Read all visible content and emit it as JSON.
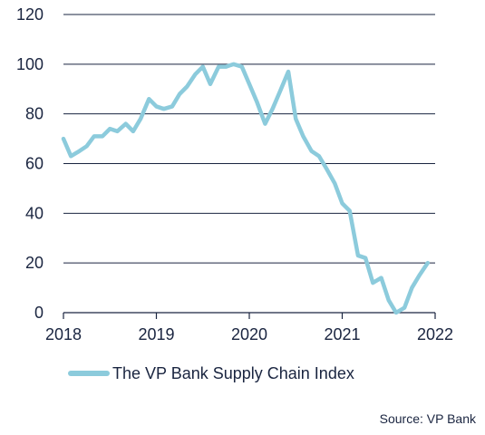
{
  "chart_data": {
    "type": "line",
    "title": "",
    "xlabel": "",
    "ylabel": "",
    "xlim": [
      2018,
      2022
    ],
    "ylim": [
      0,
      120
    ],
    "x_ticks": [
      "2018",
      "2019",
      "2020",
      "2021",
      "2022"
    ],
    "y_ticks": [
      "0",
      "20",
      "40",
      "60",
      "80",
      "100",
      "120"
    ],
    "grid": "horizontal",
    "legend": "bottom-left",
    "series": [
      {
        "name": "The VP Bank Supply Chain Index",
        "color": "#8ccbdc",
        "points": [
          [
            2018.0,
            70
          ],
          [
            2018.08,
            63
          ],
          [
            2018.17,
            65
          ],
          [
            2018.25,
            67
          ],
          [
            2018.33,
            71
          ],
          [
            2018.42,
            71
          ],
          [
            2018.5,
            74
          ],
          [
            2018.58,
            73
          ],
          [
            2018.67,
            76
          ],
          [
            2018.75,
            73
          ],
          [
            2018.83,
            78
          ],
          [
            2018.92,
            86
          ],
          [
            2019.0,
            83
          ],
          [
            2019.08,
            82
          ],
          [
            2019.17,
            83
          ],
          [
            2019.25,
            88
          ],
          [
            2019.33,
            91
          ],
          [
            2019.42,
            96
          ],
          [
            2019.5,
            99
          ],
          [
            2019.58,
            92
          ],
          [
            2019.67,
            99
          ],
          [
            2019.75,
            99
          ],
          [
            2019.83,
            100
          ],
          [
            2019.92,
            99
          ],
          [
            2020.0,
            92
          ],
          [
            2020.08,
            85
          ],
          [
            2020.17,
            76
          ],
          [
            2020.25,
            82
          ],
          [
            2020.33,
            89
          ],
          [
            2020.42,
            97
          ],
          [
            2020.5,
            78
          ],
          [
            2020.58,
            71
          ],
          [
            2020.67,
            65
          ],
          [
            2020.75,
            63
          ],
          [
            2020.83,
            58
          ],
          [
            2020.92,
            52
          ],
          [
            2021.0,
            44
          ],
          [
            2021.08,
            41
          ],
          [
            2021.17,
            23
          ],
          [
            2021.25,
            22
          ],
          [
            2021.33,
            12
          ],
          [
            2021.42,
            14
          ],
          [
            2021.5,
            5
          ],
          [
            2021.58,
            0
          ],
          [
            2021.67,
            2
          ],
          [
            2021.75,
            10
          ],
          [
            2021.83,
            15
          ],
          [
            2021.92,
            20
          ]
        ]
      }
    ],
    "source": "Source: VP Bank"
  }
}
